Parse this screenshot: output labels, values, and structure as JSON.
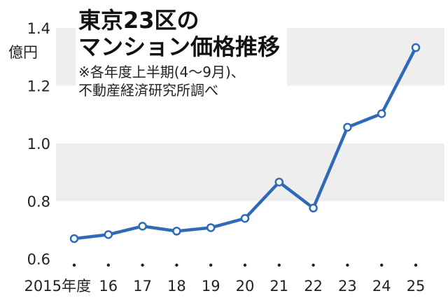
{
  "chart_data": {
    "type": "line",
    "title_lines": [
      "東京23区の",
      "マンション価格推移"
    ],
    "note_lines": [
      "※各年度上半期(4～9月)、",
      "不動産経済研究所調べ"
    ],
    "y_unit": "億円",
    "categories": [
      "2015年度",
      "16",
      "17",
      "18",
      "19",
      "20",
      "21",
      "22",
      "23",
      "24",
      "25"
    ],
    "values": [
      0.67,
      0.684,
      0.713,
      0.696,
      0.708,
      0.74,
      0.866,
      0.776,
      1.056,
      1.103,
      1.332
    ],
    "ylim": [
      0.6,
      1.4
    ],
    "yticks": [
      "0.6",
      "0.8",
      "1.0",
      "1.2",
      "1.4"
    ],
    "grid": "alternating horizontal bands",
    "line_color": "#2e6ab5",
    "band_color": "#eeeeee"
  }
}
